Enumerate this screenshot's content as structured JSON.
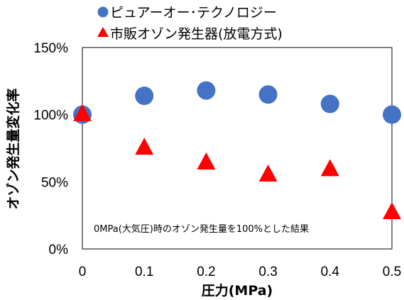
{
  "chart_data": {
    "type": "scatter",
    "xlabel": "圧力(MPa)",
    "ylabel": "オゾン発生量変化率",
    "xlim": [
      0,
      0.5
    ],
    "ylim": [
      0,
      150
    ],
    "x_ticks": [
      "0",
      "0.1",
      "0.2",
      "0.3",
      "0.4",
      "0.5"
    ],
    "y_ticks": [
      "0%",
      "50%",
      "100%",
      "150%"
    ],
    "grid": false,
    "legend_position": "top",
    "annotation": "0MPa(大気圧)時のオゾン発生量を100%とした結果",
    "series": [
      {
        "name": "ピュアーオー･テクノロジー",
        "marker": "circle",
        "color": "#4472C4",
        "x": [
          0,
          0.1,
          0.2,
          0.3,
          0.4,
          0.5
        ],
        "y": [
          100,
          114,
          118,
          115,
          108,
          100
        ]
      },
      {
        "name": "市販オゾン発生器(放電方式)",
        "marker": "triangle",
        "color": "#FF0000",
        "x": [
          0,
          0.1,
          0.2,
          0.3,
          0.4,
          0.5
        ],
        "y": [
          100,
          75,
          64,
          55,
          59,
          27
        ]
      }
    ]
  }
}
